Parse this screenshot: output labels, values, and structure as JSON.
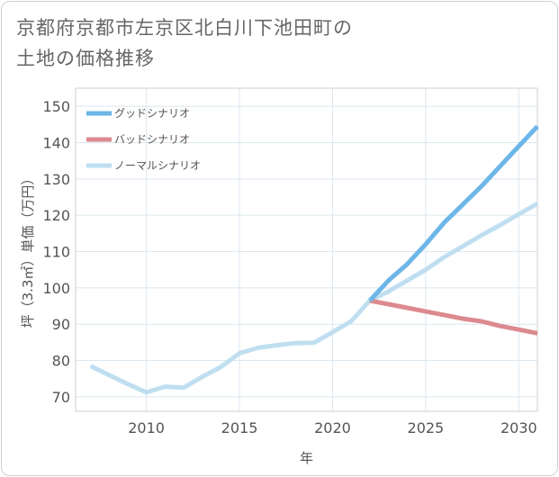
{
  "title_lines": [
    "京都府京都市左京区北白川下池田町の",
    "土地の価格推移"
  ],
  "chart_data": {
    "type": "line",
    "xlabel": "年",
    "ylabel": "坪（3.3㎡）単価（万円）",
    "xlim": [
      2006.2,
      2031
    ],
    "ylim": [
      66,
      155
    ],
    "xticks": [
      2010,
      2015,
      2020,
      2025,
      2030
    ],
    "yticks": [
      70,
      80,
      90,
      100,
      110,
      120,
      130,
      140,
      150
    ],
    "grid": true,
    "legend_position": "top-left",
    "series": [
      {
        "name": "グッドシナリオ",
        "color": "#6db6e8",
        "points": [
          [
            2022,
            96.5
          ],
          [
            2023,
            102
          ],
          [
            2024,
            106.5
          ],
          [
            2025,
            112
          ],
          [
            2026,
            118
          ],
          [
            2027,
            123
          ],
          [
            2028,
            128
          ],
          [
            2029,
            133.5
          ],
          [
            2030,
            139
          ],
          [
            2031,
            144.5
          ]
        ]
      },
      {
        "name": "バッドシナリオ",
        "color": "#dc8a8f",
        "points": [
          [
            2022,
            96.5
          ],
          [
            2023,
            95.5
          ],
          [
            2024,
            94.5
          ],
          [
            2025,
            93.5
          ],
          [
            2026,
            92.5
          ],
          [
            2027,
            91.5
          ],
          [
            2028,
            90.8
          ],
          [
            2029,
            89.5
          ],
          [
            2030,
            88.5
          ],
          [
            2031,
            87.5
          ]
        ]
      },
      {
        "name": "ノーマルシナリオ",
        "color": "#bfdff0",
        "points": [
          [
            2007,
            78.5
          ],
          [
            2008,
            76
          ],
          [
            2009,
            73.5
          ],
          [
            2010,
            71.2
          ],
          [
            2011,
            72.8
          ],
          [
            2012,
            72.5
          ],
          [
            2013,
            75.5
          ],
          [
            2014,
            78.2
          ],
          [
            2015,
            82
          ],
          [
            2016,
            83.5
          ],
          [
            2017,
            84.2
          ],
          [
            2018,
            84.8
          ],
          [
            2019,
            84.9
          ],
          [
            2020,
            87.8
          ],
          [
            2021,
            90.8
          ],
          [
            2022,
            96.5
          ],
          [
            2023,
            99
          ],
          [
            2024,
            102
          ],
          [
            2025,
            105
          ],
          [
            2026,
            108.5
          ],
          [
            2027,
            111.5
          ],
          [
            2028,
            114.5
          ],
          [
            2029,
            117.3
          ],
          [
            2030,
            120.3
          ],
          [
            2031,
            123.2
          ]
        ]
      }
    ]
  }
}
